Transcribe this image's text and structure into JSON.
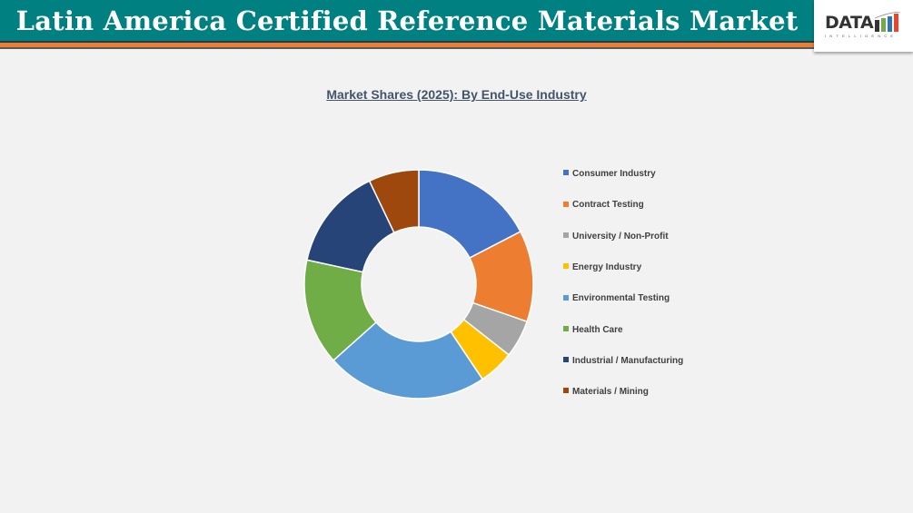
{
  "header": {
    "title": "Latin America Certified Reference Materials Market",
    "logo_text": "DATA",
    "logo_subtext": "INTELLIGENCE"
  },
  "colors": {
    "header_bg": "#008080",
    "accent_bar": "#ed7d31",
    "background": "#f2f2f2"
  },
  "chart_data": {
    "type": "pie",
    "title": "Market Shares (2025): By End-Use Industry",
    "donut": true,
    "legend_position": "right",
    "categories": [
      "Consumer Industry",
      "Contract Testing",
      "University / Non-Profit",
      "Energy Industry",
      "Environmental Testing",
      "Health Care",
      "Industrial / Manufacturing",
      "Materials / Mining"
    ],
    "values": [
      17.4,
      12.9,
      5.3,
      5.0,
      22.8,
      15.0,
      14.5,
      7.1
    ],
    "colors": [
      "#4472c4",
      "#ed7d31",
      "#a5a5a5",
      "#ffc000",
      "#5b9bd5",
      "#70ad47",
      "#264478",
      "#9e480e"
    ],
    "unit": "%"
  }
}
